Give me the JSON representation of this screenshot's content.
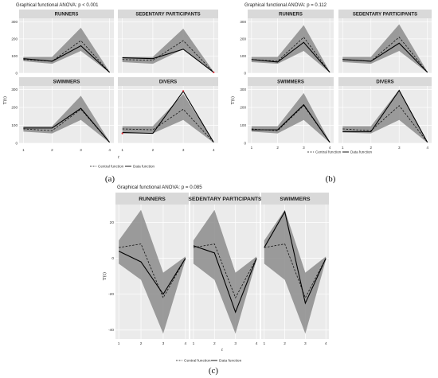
{
  "chart_data": [
    {
      "type": "line",
      "panel_label": "(a)",
      "title": "Graphical functional ANOVA: p < 0.001",
      "xlabel": "t",
      "ylabel": "T(t)",
      "x": [
        1,
        2,
        3,
        4
      ],
      "x_ticks": [
        "1",
        "2",
        "3",
        "4"
      ],
      "ylim": [
        0,
        320
      ],
      "y_ticks": [
        0,
        100,
        200,
        300
      ],
      "y_tick_labels": [
        "0",
        "100",
        "200",
        "300"
      ],
      "grid": true,
      "legend": {
        "position": "bottom",
        "central": "Central function",
        "data": "Data function"
      },
      "facets": [
        {
          "name": "RUNNERS",
          "central": [
            80,
            70,
            190,
            5
          ],
          "data": [
            85,
            70,
            160,
            5
          ],
          "band": {
            "lower": [
              70,
              55,
              130,
              3
            ],
            "upper": [
              95,
              95,
              265,
              8
            ]
          },
          "outliers": []
        },
        {
          "name": "SEDENTARY PARTICIPANTS",
          "central": [
            80,
            75,
            190,
            5
          ],
          "data": [
            90,
            85,
            140,
            5
          ],
          "band": {
            "lower": [
              65,
              55,
              140,
              3
            ],
            "upper": [
              95,
              95,
              260,
              8
            ]
          },
          "outliers": [
            {
              "x": 4,
              "y": 5
            }
          ]
        },
        {
          "name": "SWIMMERS",
          "central": [
            80,
            70,
            190,
            5
          ],
          "data": [
            85,
            85,
            195,
            5
          ],
          "band": {
            "lower": [
              65,
              55,
              130,
              3
            ],
            "upper": [
              95,
              95,
              265,
              8
            ]
          },
          "outliers": []
        },
        {
          "name": "DIVERS",
          "central": [
            80,
            75,
            190,
            5
          ],
          "data": [
            60,
            55,
            290,
            5
          ],
          "band": {
            "lower": [
              55,
              55,
              130,
              3
            ],
            "upper": [
              95,
              95,
              275,
              8
            ]
          },
          "outliers": [
            {
              "x": 1,
              "y": 55
            },
            {
              "x": 3,
              "y": 292
            }
          ]
        }
      ]
    },
    {
      "type": "line",
      "panel_label": "(b)",
      "title": "Graphical functional ANOVA: p = 0.112",
      "xlabel": "t",
      "ylabel": "T(t)",
      "x": [
        1,
        2,
        3,
        4
      ],
      "x_ticks": [
        "1",
        "2",
        "3",
        "4"
      ],
      "ylim": [
        0,
        320
      ],
      "y_ticks": [
        0,
        100,
        200,
        300
      ],
      "y_tick_labels": [
        "0",
        "100",
        "200",
        "300"
      ],
      "grid": true,
      "legend": {
        "position": "bottom",
        "central": "Central function",
        "data": "Data function"
      },
      "facets": [
        {
          "name": "RUNNERS",
          "central": [
            80,
            70,
            210,
            5
          ],
          "data": [
            80,
            65,
            180,
            5
          ],
          "band": {
            "lower": [
              65,
              55,
              130,
              3
            ],
            "upper": [
              95,
              95,
              280,
              8
            ]
          },
          "outliers": []
        },
        {
          "name": "SEDENTARY PARTICIPANTS",
          "central": [
            80,
            70,
            210,
            5
          ],
          "data": [
            80,
            70,
            175,
            5
          ],
          "band": {
            "lower": [
              65,
              55,
              130,
              3
            ],
            "upper": [
              95,
              95,
              285,
              8
            ]
          },
          "outliers": []
        },
        {
          "name": "SWIMMERS",
          "central": [
            80,
            70,
            210,
            5
          ],
          "data": [
            75,
            75,
            215,
            5
          ],
          "band": {
            "lower": [
              65,
              55,
              130,
              3
            ],
            "upper": [
              95,
              95,
              280,
              8
            ]
          },
          "outliers": []
        },
        {
          "name": "DIVERS",
          "central": [
            80,
            70,
            210,
            5
          ],
          "data": [
            65,
            65,
            295,
            5
          ],
          "band": {
            "lower": [
              60,
              55,
              130,
              3
            ],
            "upper": [
              95,
              95,
              300,
              8
            ]
          },
          "outliers": []
        }
      ]
    },
    {
      "type": "line",
      "panel_label": "(c)",
      "title": "Graphical functional ANOVA: p = 0.085",
      "xlabel": "t",
      "ylabel": "T(t)",
      "x": [
        1,
        2,
        3,
        4
      ],
      "x_ticks": [
        "1",
        "2",
        "3",
        "4"
      ],
      "ylim": [
        -45,
        30
      ],
      "y_ticks": [
        -40,
        -20,
        0,
        20
      ],
      "y_tick_labels": [
        "-40",
        "-20",
        "0",
        "20"
      ],
      "grid": true,
      "legend": {
        "position": "bottom",
        "central": "Central function",
        "data": "Data function"
      },
      "facets": [
        {
          "name": "RUNNERS",
          "central": [
            6,
            8,
            -22,
            0
          ],
          "data": [
            4,
            -2,
            -20,
            0
          ],
          "band": {
            "lower": [
              -3,
              -12,
              -42,
              -1
            ],
            "upper": [
              10,
              27,
              -8,
              1
            ]
          },
          "outliers": []
        },
        {
          "name": "SEDENTARY PARTICIPANTS",
          "central": [
            6,
            8,
            -22,
            0
          ],
          "data": [
            7,
            3,
            -30,
            0
          ],
          "band": {
            "lower": [
              -3,
              -12,
              -42,
              -1
            ],
            "upper": [
              10,
              27,
              -8,
              1
            ]
          },
          "outliers": []
        },
        {
          "name": "SWIMMERS",
          "central": [
            6,
            8,
            -22,
            0
          ],
          "data": [
            6,
            26,
            -25,
            0
          ],
          "band": {
            "lower": [
              -3,
              -12,
              -42,
              -1
            ],
            "upper": [
              10,
              27,
              -8,
              1
            ]
          },
          "outliers": []
        }
      ]
    }
  ]
}
